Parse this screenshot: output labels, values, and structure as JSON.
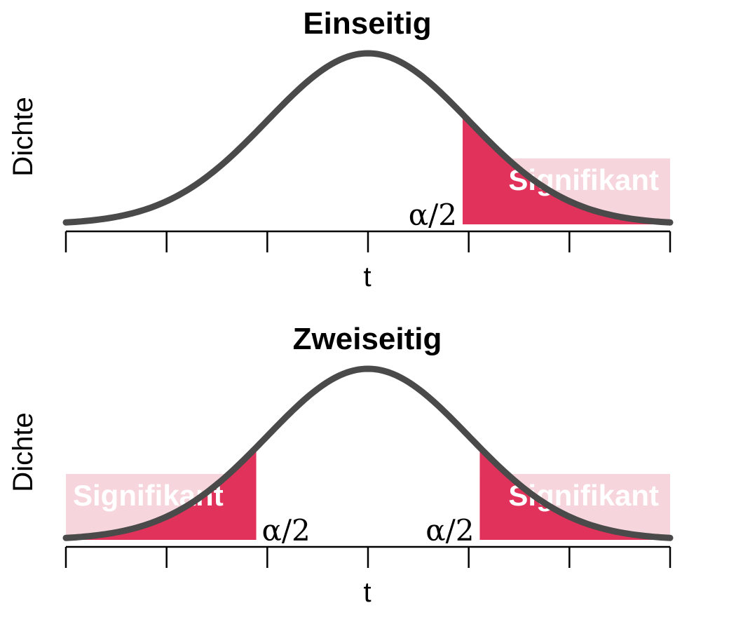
{
  "chart_data": [
    {
      "type": "area",
      "title": "Einseitig",
      "xlabel": "t",
      "ylabel": "Dichte",
      "xlim": [
        -3,
        3
      ],
      "x_ticks": [
        -3,
        -2,
        -1,
        0,
        1,
        2,
        3
      ],
      "x_ticks_labeled": false,
      "curve": "standard normal density",
      "regions": [
        {
          "label": "Signifikant",
          "side": "right",
          "from": 0.94,
          "to": 3,
          "tail_label": "α/2"
        }
      ],
      "grid": false,
      "legend": "none"
    },
    {
      "type": "area",
      "title": "Zweiseitig",
      "xlabel": "t",
      "ylabel": "Dichte",
      "xlim": [
        -3,
        3
      ],
      "x_ticks": [
        -3,
        -2,
        -1,
        0,
        1,
        2,
        3
      ],
      "x_ticks_labeled": false,
      "curve": "standard normal density",
      "regions": [
        {
          "label": "Signifikant",
          "side": "left",
          "from": -3,
          "to": -1.11,
          "tail_label": "α/2"
        },
        {
          "label": "Signifikant",
          "side": "right",
          "from": 1.11,
          "to": 3,
          "tail_label": "α/2"
        }
      ],
      "grid": false,
      "legend": "none"
    }
  ],
  "colors": {
    "curve": "#4a4a4a",
    "region_fill": "#f7d5dc",
    "tail_fill": "#e0325a",
    "axis": "#000000"
  }
}
